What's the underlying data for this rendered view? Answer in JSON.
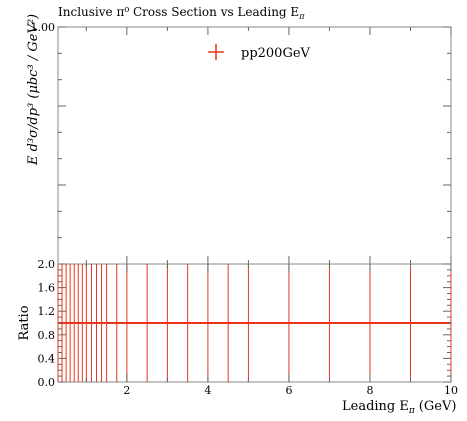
{
  "chart_data": [
    {
      "type": "scatter",
      "panel": "main",
      "title": "Inclusive π⁰ Cross Section vs Leading E",
      "title_subscript": "π",
      "ylabel": "E d³σ/dp³ (μbc³ / GeV²)",
      "yticks": [
        "1.00"
      ],
      "legend": {
        "placement": "top-center",
        "entries": [
          {
            "name": "pp200GeV",
            "color": "#e8341c",
            "marker": "cross"
          }
        ]
      },
      "series": [
        {
          "name": "pp200GeV",
          "x": [],
          "y": []
        }
      ]
    },
    {
      "type": "scatter",
      "panel": "ratio",
      "xlabel": "Leading E",
      "xlabel_subscript": "π",
      "xlabel_unit": "(GeV)",
      "ylabel": "Ratio",
      "xlim": [
        0.3,
        10
      ],
      "ylim": [
        0,
        2
      ],
      "xticks": [
        2,
        4,
        6,
        8,
        10
      ],
      "xtick_labels": [
        "2",
        "4",
        "6",
        "8",
        "10"
      ],
      "yticks": [
        0,
        0.4,
        0.8,
        1.2,
        1.6,
        2.0
      ],
      "ytick_labels": [
        "0.0",
        "0.4",
        "0.8",
        "1.2",
        "1.6",
        "2.0"
      ],
      "reference_line": 1.0,
      "color": "#e8341c",
      "bin_edges": [
        0.3,
        0.4,
        0.5,
        0.6,
        0.7,
        0.8,
        0.9,
        1.0,
        1.125,
        1.25,
        1.375,
        1.5,
        1.75,
        2.0,
        2.5,
        3.0,
        3.5,
        4.0,
        4.5,
        5.0,
        6.0,
        7.0,
        8.0,
        9.0,
        10.0
      ],
      "ratio_values": [
        1,
        1,
        1,
        1,
        1,
        1,
        1,
        1,
        1,
        1,
        1,
        1,
        1,
        1,
        1,
        1,
        1,
        1,
        1,
        1,
        1,
        1,
        1,
        1
      ]
    }
  ]
}
